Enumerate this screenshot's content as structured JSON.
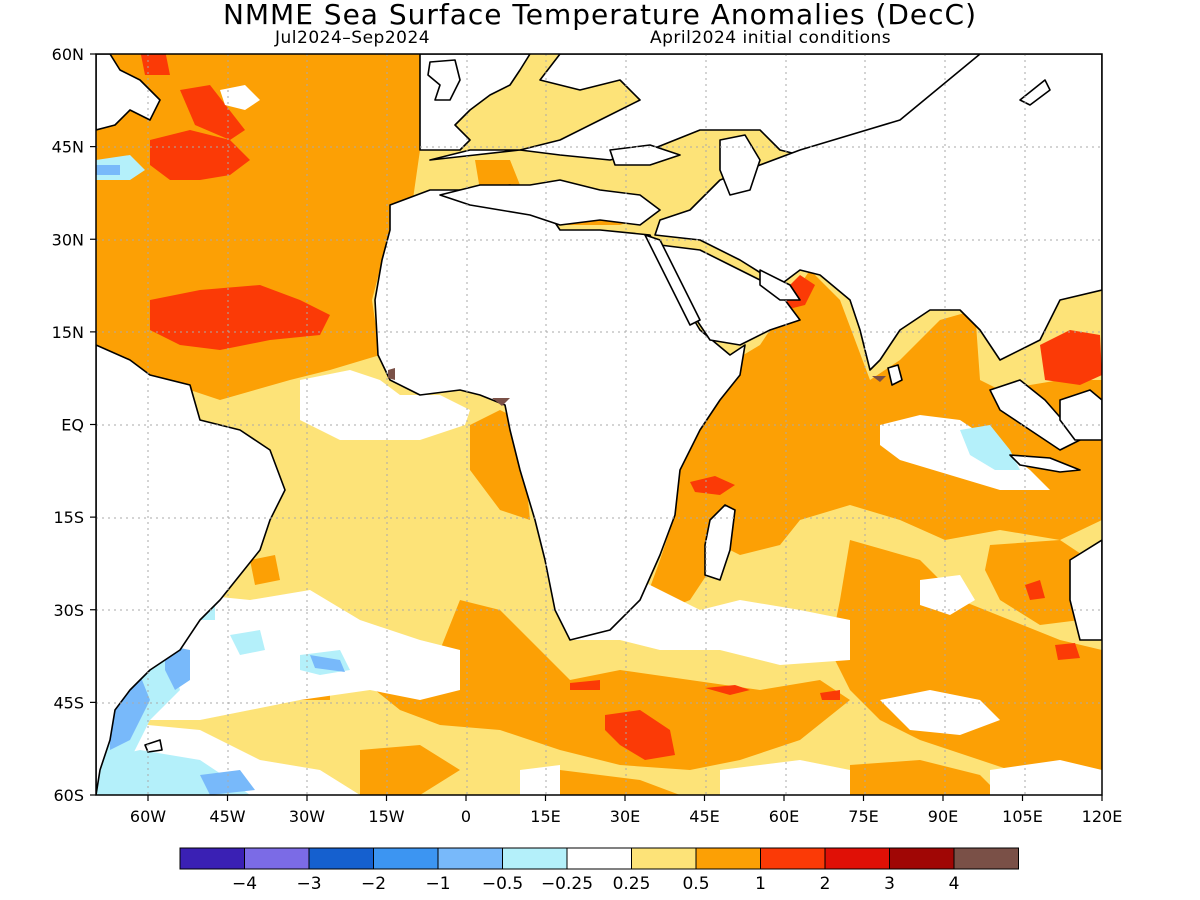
{
  "header": {
    "title": "NMME Sea Surface Temperature Anomalies (DecC)",
    "period": "Jul2024–Sep2024",
    "init": "April2024 initial conditions"
  },
  "map": {
    "lat_labels": [
      "60N",
      "45N",
      "30N",
      "15N",
      "EQ",
      "15S",
      "30S",
      "45S",
      "60S"
    ],
    "lon_labels": [
      "60W",
      "45W",
      "30W",
      "15W",
      "0",
      "15E",
      "30E",
      "45E",
      "60E",
      "75E",
      "90E",
      "105E",
      "120E"
    ],
    "colors": {
      "ocean_neutral": "#ffffff",
      "land": "#ffffff",
      "pos_025_05": "#fde378",
      "pos_05_1": "#fca005",
      "pos_1_2": "#fb3a06",
      "pos_2_3": "#e01006",
      "neg_025_05": "#b4f0fa",
      "neg_05_1": "#78b9fa",
      "neg_1_2": "#3d94ef"
    }
  },
  "colorbar": {
    "colors": [
      "#3a20b4",
      "#7b6be6",
      "#1560cf",
      "#3c95f2",
      "#78b9fa",
      "#b4f0fa",
      "#ffffff",
      "#fde378",
      "#fca005",
      "#fb3a06",
      "#e01006",
      "#a00605",
      "#7a5047"
    ],
    "labels": [
      "−4",
      "−3",
      "−2",
      "−1",
      "−0.5",
      "−0.25",
      "0.25",
      "0.5",
      "1",
      "2",
      "3",
      "4"
    ]
  }
}
